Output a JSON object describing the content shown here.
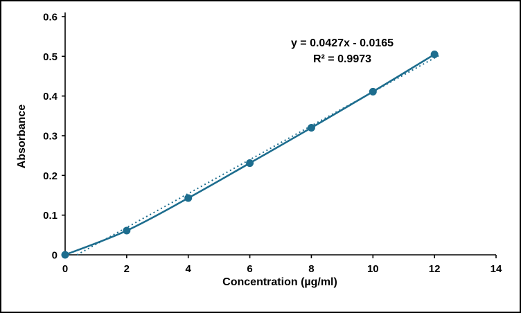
{
  "chart_data": {
    "type": "scatter",
    "title": "",
    "xlabel": "Concentration (µg/ml)",
    "ylabel": "Absorbance",
    "x": [
      0,
      2,
      4,
      6,
      8,
      10,
      12
    ],
    "y": [
      0.0,
      0.061,
      0.143,
      0.231,
      0.32,
      0.411,
      0.505
    ],
    "xlim": [
      0,
      14
    ],
    "ylim": [
      0,
      0.6
    ],
    "x_tick_values": [
      0,
      2,
      4,
      6,
      8,
      10,
      12,
      14
    ],
    "y_tick_values": [
      0,
      0.1,
      0.2,
      0.3,
      0.4,
      0.5,
      0.6
    ],
    "x_tick_labels": [
      "0",
      "2",
      "4",
      "6",
      "8",
      "10",
      "12",
      "14"
    ],
    "y_tick_labels": [
      "0",
      "0.1",
      "0.2",
      "0.3",
      "0.4",
      "0.5",
      "0.6"
    ],
    "grid": false,
    "legend": "none",
    "line_color": "#1d6d8e",
    "marker_color": "#1d6d8e",
    "axis_color": "#000000",
    "trendline": {
      "slope": 0.0427,
      "intercept": -0.0165,
      "style": "dotted",
      "equation": "y = 0.0427x - 0.0165",
      "r_squared_label": "R² = 0.9973"
    }
  }
}
